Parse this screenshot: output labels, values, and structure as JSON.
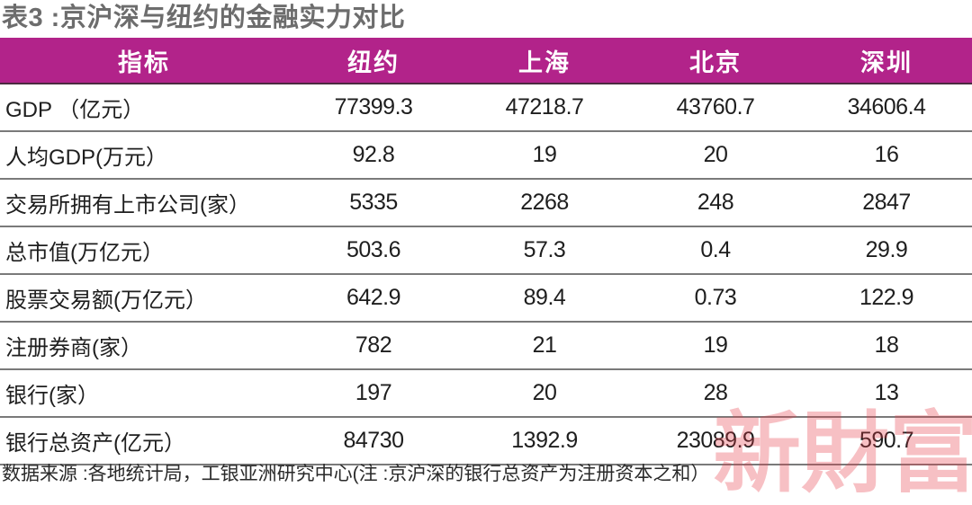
{
  "title": "表3 :京沪深与纽约的金融实力对比",
  "table": {
    "headers": [
      "指标",
      "纽约",
      "上海",
      "北京",
      "深圳"
    ],
    "header_color": "#b2238a",
    "rows": [
      {
        "label": "GDP （亿元）",
        "values": [
          "77399.3",
          "47218.7",
          "43760.7",
          "34606.4"
        ]
      },
      {
        "label": "人均GDP(万元）",
        "values": [
          "92.8",
          "19",
          "20",
          "16"
        ]
      },
      {
        "label": "交易所拥有上市公司(家）",
        "values": [
          "5335",
          "2268",
          "248",
          "2847"
        ]
      },
      {
        "label": "总市值(万亿元）",
        "values": [
          "503.6",
          "57.3",
          "0.4",
          "29.9"
        ]
      },
      {
        "label": "股票交易额(万亿元）",
        "values": [
          "642.9",
          "89.4",
          "0.73",
          "122.9"
        ]
      },
      {
        "label": "注册券商(家）",
        "values": [
          "782",
          "21",
          "19",
          "18"
        ]
      },
      {
        "label": "银行(家）",
        "values": [
          "197",
          "20",
          "28",
          "13"
        ]
      },
      {
        "label": "银行总资产(亿元）",
        "values": [
          "84730",
          "1392.9",
          "23089.9",
          "590.7"
        ]
      }
    ]
  },
  "source": "数据来源 :各地统计局，工银亚洲研究中心(注 :京沪深的银行总资产为注册资本之和）",
  "watermark": "新財富"
}
